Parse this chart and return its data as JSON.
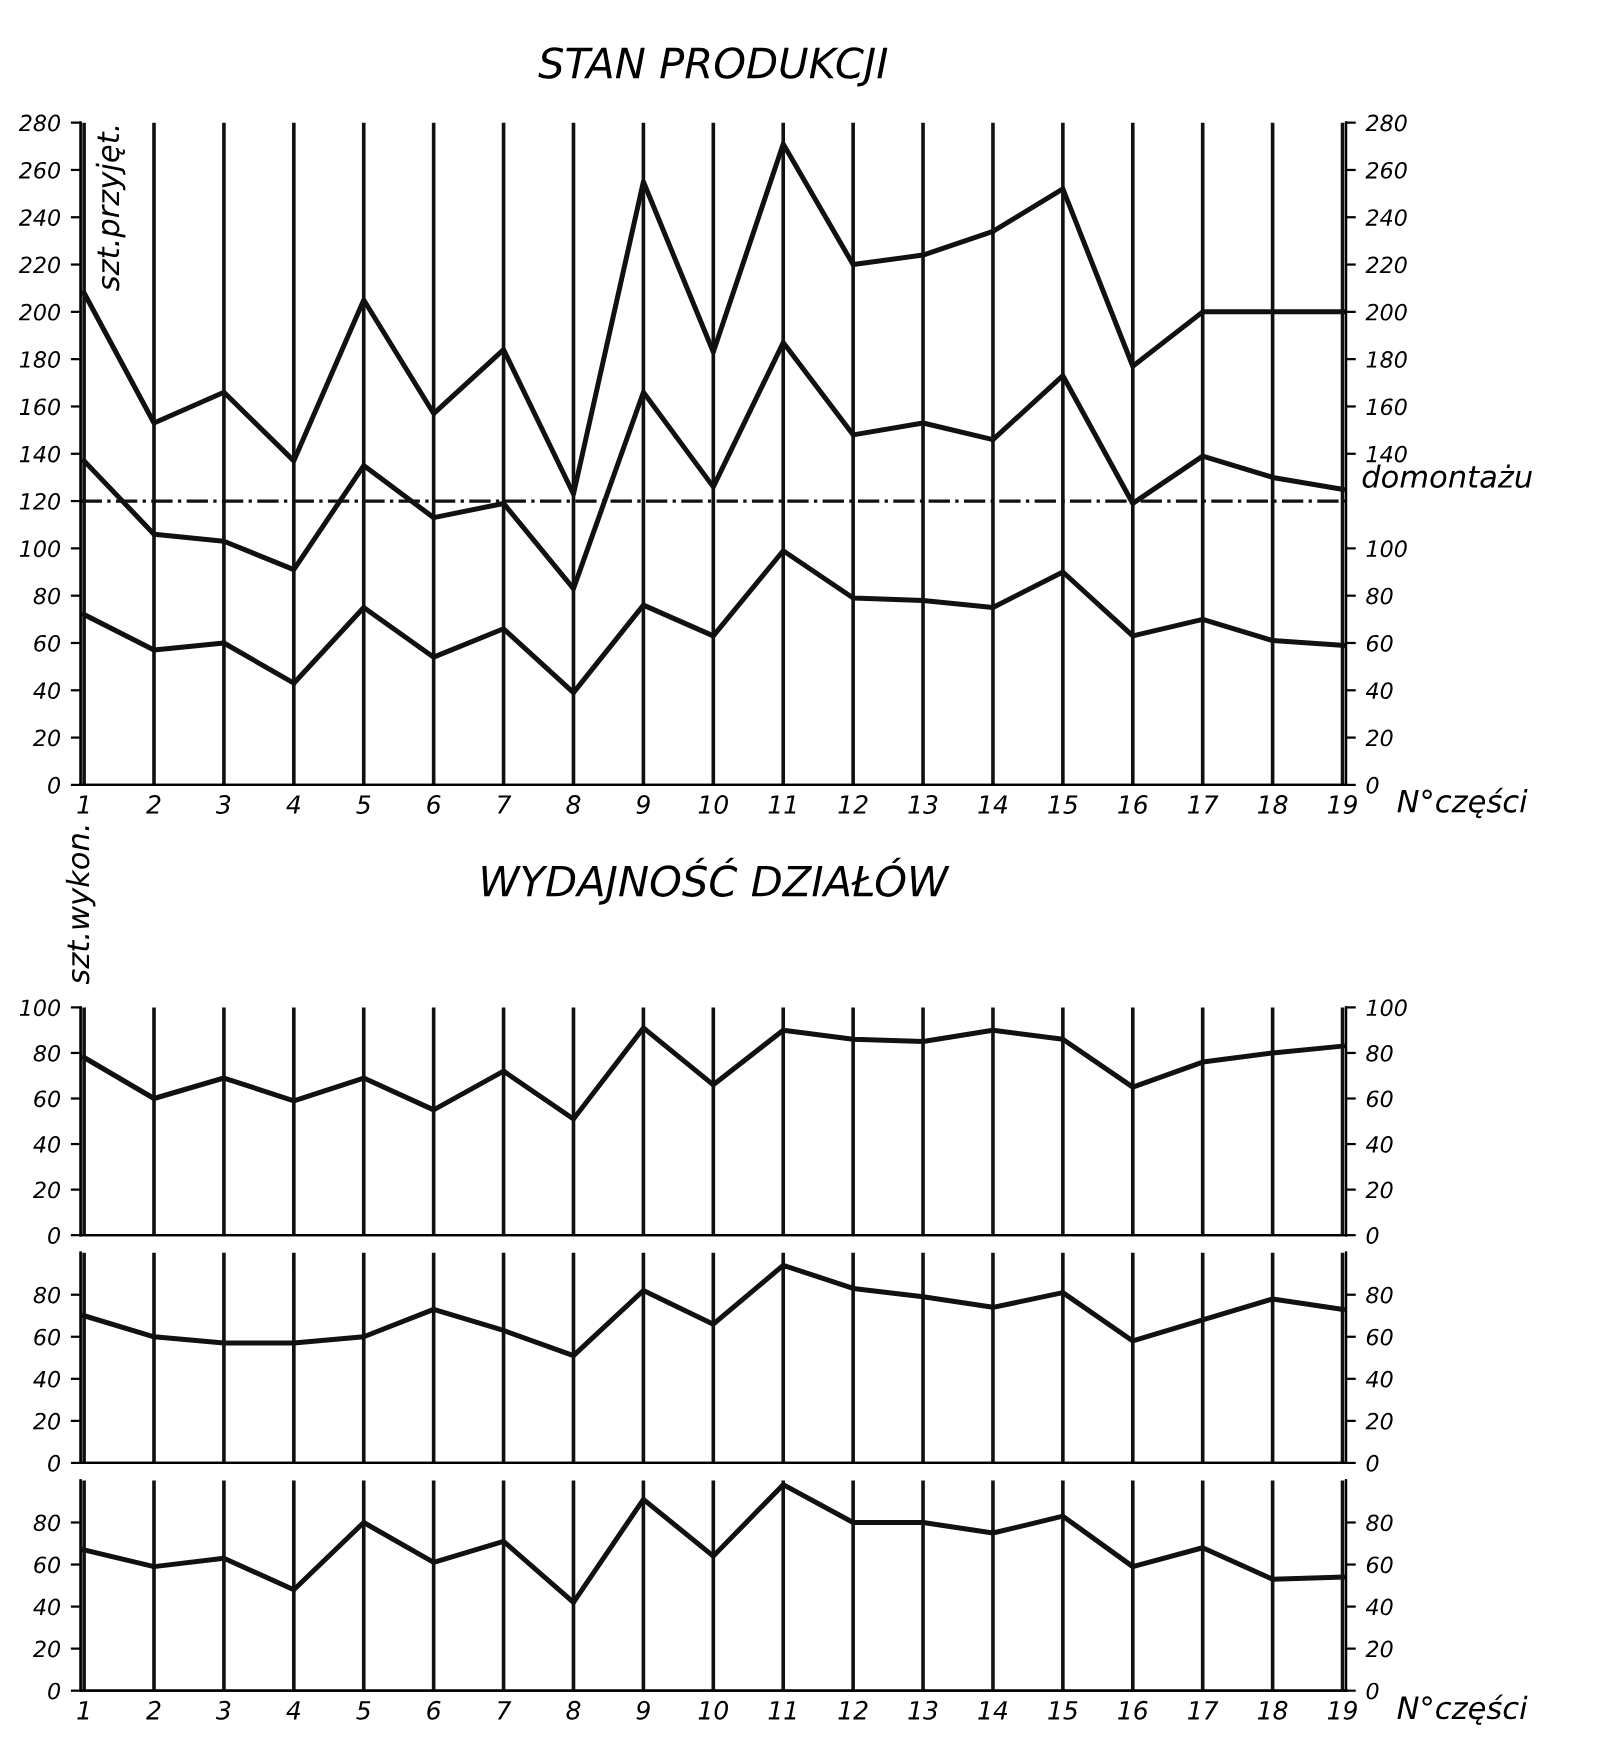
{
  "chart_data": [
    {
      "type": "line",
      "title": "STAN PRODUKCJI",
      "ylabel": "szt.przyjęt.",
      "xlabel": "N°części",
      "categories": [
        "1",
        "2",
        "3",
        "4",
        "5",
        "6",
        "7",
        "8",
        "9",
        "10",
        "11",
        "12",
        "13",
        "14",
        "15",
        "16",
        "17",
        "18",
        "19"
      ],
      "series": [
        {
          "color": "#111111",
          "values": [
            208,
            153,
            166,
            137,
            205,
            157,
            184,
            123,
            255,
            183,
            271,
            220,
            224,
            234,
            252,
            177,
            200,
            200,
            200
          ]
        },
        {
          "color": "#111111",
          "values": [
            137,
            106,
            103,
            91,
            135,
            113,
            119,
            83,
            166,
            126,
            187,
            148,
            153,
            146,
            173,
            119,
            139,
            130,
            125
          ]
        },
        {
          "color": "#111111",
          "values": [
            72,
            57,
            60,
            43,
            75,
            54,
            66,
            39,
            76,
            63,
            99,
            79,
            78,
            75,
            90,
            63,
            70,
            61,
            59
          ]
        }
      ],
      "ylim": [
        0,
        280
      ],
      "yticks": [
        0,
        20,
        40,
        60,
        80,
        100,
        120,
        140,
        160,
        180,
        200,
        220,
        240,
        260,
        280
      ],
      "y2lim": [
        0,
        280
      ],
      "y2ticks": [
        0,
        20,
        40,
        60,
        80,
        100,
        140,
        160,
        180,
        200,
        220,
        240,
        260,
        280
      ],
      "ref_lines": [
        {
          "axis": "y",
          "value": 120,
          "label": "domontażu",
          "color": "#111111",
          "line_style": "dashdot"
        }
      ],
      "grid": "x",
      "tick_labels": true
    },
    {
      "type": "line",
      "title": "WYDAJNOŚĆ DZIAŁÓW",
      "ylabel": "szt.wykon.",
      "categories": [
        "1",
        "2",
        "3",
        "4",
        "5",
        "6",
        "7",
        "8",
        "9",
        "10",
        "11",
        "12",
        "13",
        "14",
        "15",
        "16",
        "17",
        "18",
        "19"
      ],
      "series": [
        {
          "color": "#111111",
          "values": [
            78,
            60,
            69,
            59,
            69,
            55,
            72,
            51,
            91,
            66,
            90,
            86,
            85,
            90,
            86,
            65,
            76,
            80,
            83
          ]
        }
      ],
      "ylim": [
        0,
        100
      ],
      "yticks": [
        0,
        20,
        40,
        60,
        80,
        100
      ],
      "y2lim": [
        0,
        100
      ],
      "y2ticks": [
        0,
        20,
        40,
        60,
        80,
        100
      ],
      "grid": "x",
      "tick_labels": "y"
    },
    {
      "type": "line",
      "categories": [
        "1",
        "2",
        "3",
        "4",
        "5",
        "6",
        "7",
        "8",
        "9",
        "10",
        "11",
        "12",
        "13",
        "14",
        "15",
        "16",
        "17",
        "18",
        "19"
      ],
      "series": [
        {
          "color": "#111111",
          "values": [
            70,
            60,
            57,
            57,
            60,
            73,
            63,
            51,
            82,
            66,
            94,
            83,
            79,
            74,
            81,
            58,
            68,
            78,
            73
          ]
        }
      ],
      "ylim": [
        0,
        100
      ],
      "yticks": [
        0,
        20,
        40,
        60,
        80
      ],
      "y2lim": [
        0,
        100
      ],
      "y2ticks": [
        0,
        20,
        40,
        60,
        80
      ],
      "grid": "x",
      "tick_labels": "y"
    },
    {
      "type": "line",
      "xlabel": "N°części",
      "categories": [
        "1",
        "2",
        "3",
        "4",
        "5",
        "6",
        "7",
        "8",
        "9",
        "10",
        "11",
        "12",
        "13",
        "14",
        "15",
        "16",
        "17",
        "18",
        "19"
      ],
      "series": [
        {
          "color": "#111111",
          "values": [
            67,
            59,
            63,
            48,
            80,
            61,
            71,
            42,
            91,
            64,
            98,
            80,
            80,
            75,
            83,
            59,
            68,
            53,
            54
          ]
        }
      ],
      "ylim": [
        0,
        100
      ],
      "yticks": [
        0,
        20,
        40,
        60,
        80
      ],
      "y2lim": [
        0,
        100
      ],
      "y2ticks": [
        0,
        20,
        40,
        60,
        80
      ],
      "grid": "x",
      "tick_labels": true
    }
  ]
}
